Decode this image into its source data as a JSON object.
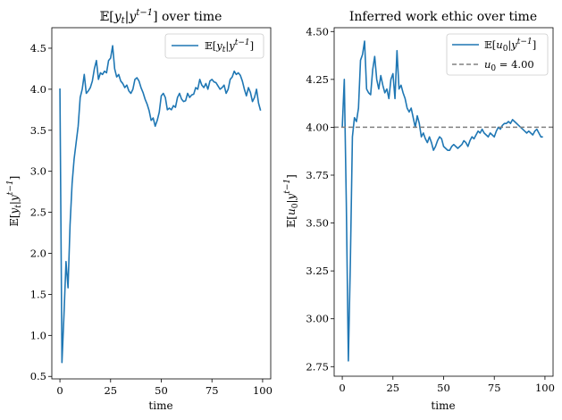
{
  "chart_data": [
    {
      "type": "line",
      "title": "𝔼[y_t|y^{t-1}] over time",
      "xlabel": "time",
      "ylabel": "𝔼[y_t|y^{t-1}]",
      "xlim": [
        -4,
        104
      ],
      "ylim": [
        0.47,
        4.75
      ],
      "xticks": [
        0,
        25,
        50,
        75,
        100
      ],
      "yticks": [
        0.5,
        1.0,
        1.5,
        2.0,
        2.5,
        3.0,
        3.5,
        4.0,
        4.5
      ],
      "legend_position": "top-right",
      "grid": false,
      "series": [
        {
          "name": "𝔼[y_t|y^{t-1}]",
          "color": "#1f77b4",
          "style": "solid",
          "x": [
            0,
            1,
            2,
            3,
            4,
            5,
            6,
            7,
            8,
            9,
            10,
            11,
            12,
            13,
            14,
            15,
            16,
            17,
            18,
            19,
            20,
            21,
            22,
            23,
            24,
            25,
            26,
            27,
            28,
            29,
            30,
            31,
            32,
            33,
            34,
            35,
            36,
            37,
            38,
            39,
            40,
            41,
            42,
            43,
            44,
            45,
            46,
            47,
            48,
            49,
            50,
            51,
            52,
            53,
            54,
            55,
            56,
            57,
            58,
            59,
            60,
            61,
            62,
            63,
            64,
            65,
            66,
            67,
            68,
            69,
            70,
            71,
            72,
            73,
            74,
            75,
            76,
            77,
            78,
            79,
            80,
            81,
            82,
            83,
            84,
            85,
            86,
            87,
            88,
            89,
            90,
            91,
            92,
            93,
            94,
            95,
            96,
            97,
            98,
            99
          ],
          "y": [
            4.01,
            0.67,
            1.25,
            1.9,
            1.58,
            2.35,
            2.85,
            3.15,
            3.35,
            3.55,
            3.9,
            4.0,
            4.18,
            3.95,
            3.98,
            4.02,
            4.1,
            4.25,
            4.35,
            4.12,
            4.2,
            4.18,
            4.22,
            4.2,
            4.35,
            4.38,
            4.53,
            4.25,
            4.15,
            4.18,
            4.1,
            4.07,
            4.02,
            4.05,
            3.98,
            3.95,
            4.0,
            4.12,
            4.14,
            4.1,
            4.02,
            3.96,
            3.88,
            3.82,
            3.74,
            3.62,
            3.65,
            3.55,
            3.62,
            3.72,
            3.92,
            3.95,
            3.9,
            3.75,
            3.77,
            3.75,
            3.8,
            3.78,
            3.9,
            3.95,
            3.88,
            3.85,
            3.86,
            3.95,
            3.9,
            3.93,
            3.94,
            4.02,
            4.0,
            4.12,
            4.05,
            4.02,
            4.07,
            4.0,
            4.1,
            4.12,
            4.09,
            4.08,
            4.04,
            4.0,
            4.02,
            4.05,
            3.95,
            4.0,
            4.12,
            4.15,
            4.22,
            4.18,
            4.2,
            4.17,
            4.1,
            4.0,
            3.92,
            4.02,
            3.96,
            3.85,
            3.9,
            4.0,
            3.83,
            3.74
          ]
        }
      ]
    },
    {
      "type": "line",
      "title": "Inferred work ethic over time",
      "xlabel": "time",
      "ylabel": "𝔼[u_0|y^{t-1}]",
      "xlim": [
        -4,
        104
      ],
      "ylim": [
        2.7,
        4.52
      ],
      "xticks": [
        0,
        25,
        50,
        75,
        100
      ],
      "yticks": [
        2.75,
        3.0,
        3.25,
        3.5,
        3.75,
        4.0,
        4.25,
        4.5
      ],
      "legend_position": "top-right",
      "grid": false,
      "series": [
        {
          "name": "𝔼[u_0|y^{t-1}]",
          "color": "#1f77b4",
          "style": "solid",
          "x": [
            0,
            1,
            2,
            3,
            4,
            5,
            6,
            7,
            8,
            9,
            10,
            11,
            12,
            13,
            14,
            15,
            16,
            17,
            18,
            19,
            20,
            21,
            22,
            23,
            24,
            25,
            26,
            27,
            28,
            29,
            30,
            31,
            32,
            33,
            34,
            35,
            36,
            37,
            38,
            39,
            40,
            41,
            42,
            43,
            44,
            45,
            46,
            47,
            48,
            49,
            50,
            51,
            52,
            53,
            54,
            55,
            56,
            57,
            58,
            59,
            60,
            61,
            62,
            63,
            64,
            65,
            66,
            67,
            68,
            69,
            70,
            71,
            72,
            73,
            74,
            75,
            76,
            77,
            78,
            79,
            80,
            81,
            82,
            83,
            84,
            85,
            86,
            87,
            88,
            89,
            90,
            91,
            92,
            93,
            94,
            95,
            96,
            97,
            98,
            99
          ],
          "y": [
            4.0,
            4.25,
            3.6,
            2.78,
            3.3,
            3.95,
            4.05,
            4.03,
            4.1,
            4.35,
            4.38,
            4.45,
            4.2,
            4.18,
            4.17,
            4.3,
            4.37,
            4.25,
            4.2,
            4.27,
            4.22,
            4.18,
            4.2,
            4.15,
            4.25,
            4.28,
            4.15,
            4.4,
            4.2,
            4.22,
            4.18,
            4.15,
            4.1,
            4.08,
            4.1,
            4.05,
            4.0,
            4.06,
            4.02,
            3.95,
            3.97,
            3.94,
            3.92,
            3.95,
            3.92,
            3.88,
            3.9,
            3.93,
            3.95,
            3.94,
            3.9,
            3.89,
            3.88,
            3.88,
            3.9,
            3.91,
            3.9,
            3.89,
            3.9,
            3.91,
            3.93,
            3.92,
            3.9,
            3.93,
            3.95,
            3.94,
            3.96,
            3.98,
            3.97,
            3.99,
            3.97,
            3.96,
            3.95,
            3.97,
            3.96,
            3.95,
            3.98,
            4.0,
            3.99,
            4.01,
            4.02,
            4.02,
            4.03,
            4.02,
            4.04,
            4.03,
            4.02,
            4.01,
            4.0,
            3.99,
            3.98,
            3.97,
            3.98,
            3.97,
            3.96,
            3.98,
            3.99,
            3.97,
            3.95,
            3.95
          ]
        },
        {
          "name": "u_0 = 4.00",
          "color": "#808080",
          "style": "dashed",
          "hline": 4.0
        }
      ]
    }
  ]
}
